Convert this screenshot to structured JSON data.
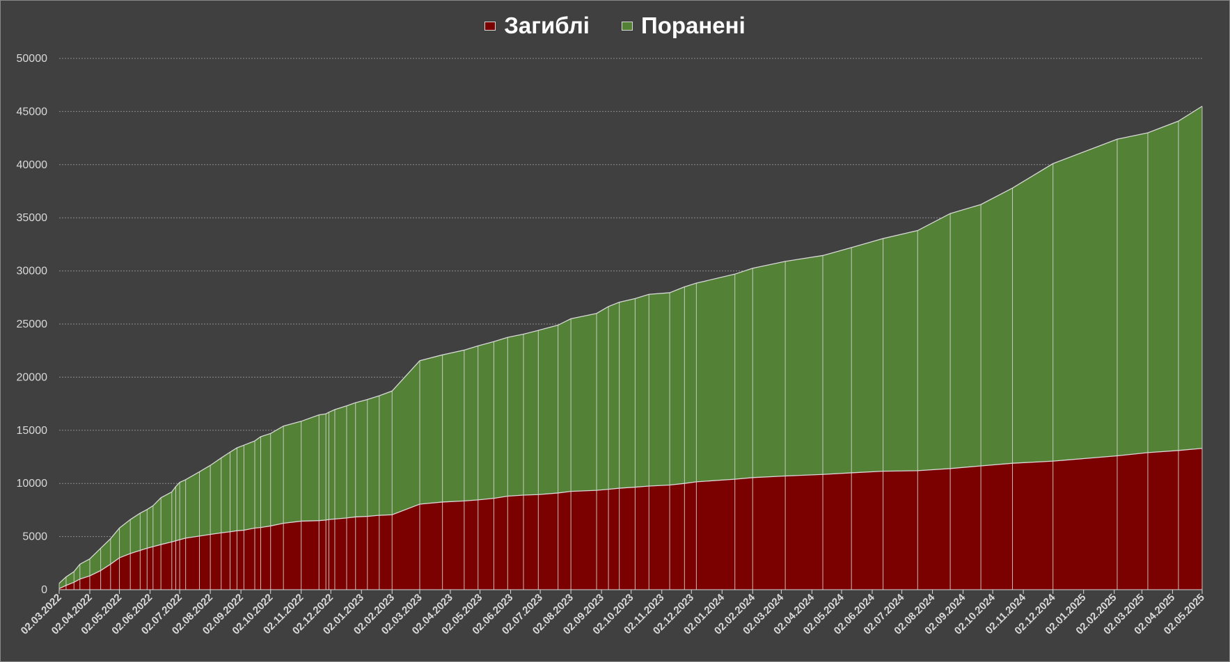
{
  "colors": {
    "background": "#404040",
    "killed": "#7b0000",
    "wounded": "#538135",
    "divider": "#d9d9d9",
    "gridline": "#8c8c8c",
    "tick_text": "#d9d9d9",
    "legend_text": "#ffffff"
  },
  "legend": [
    {
      "label": "Загиблі",
      "color": "#7b0000"
    },
    {
      "label": "Поранені",
      "color": "#538135"
    }
  ],
  "chart_data": {
    "type": "area",
    "stacked": true,
    "grid": "horizontal-dotted",
    "legend_position": "top-center",
    "title": "",
    "xlabel": "",
    "ylabel": "",
    "ylim": [
      0,
      50000
    ],
    "yticks": [
      0,
      5000,
      10000,
      15000,
      20000,
      25000,
      30000,
      35000,
      40000,
      45000,
      50000
    ],
    "xticks": [
      "02.03.2022",
      "02.04.2022",
      "02.05.2022",
      "02.06.2022",
      "02.07.2022",
      "02.08.2022",
      "02.09.2022",
      "02.10.2022",
      "02.11.2022",
      "02.12.2022",
      "02.01.2023",
      "02.02.2023",
      "02.03.2023",
      "02.04.2023",
      "02.05.2023",
      "02.06.2023",
      "02.07.2023",
      "02.08.2023",
      "02.09.2023",
      "02.10.2023",
      "02.11.2023",
      "02.12.2023",
      "02.01.2024",
      "02.02.2024",
      "02.03.2024",
      "02.04.2024",
      "02.05.2024",
      "02.06.2024",
      "02.07.2024",
      "02.08.2024",
      "02.09.2024",
      "02.10.2024",
      "02.11.2024",
      "02.12.2024",
      "02.01.2025",
      "02.02.2025",
      "02.03.2025",
      "02.04.2025",
      "02.05.2025"
    ],
    "x": [
      "02.03.2022",
      "09.03.2022",
      "17.03.2022",
      "23.03.2022",
      "02.04.2022",
      "13.04.2022",
      "23.04.2022",
      "02.05.2022",
      "13.05.2022",
      "23.05.2022",
      "30.05.2022",
      "05.06.2022",
      "13.06.2022",
      "24.06.2022",
      "28.06.2022",
      "02.07.2022",
      "08.07.2022",
      "22.07.2022",
      "02.08.2022",
      "13.08.2022",
      "22.08.2022",
      "29.08.2022",
      "05.09.2022",
      "16.09.2022",
      "22.09.2022",
      "02.10.2022",
      "15.10.2022",
      "02.11.2022",
      "20.11.2022",
      "27.11.2022",
      "30.11.2022",
      "06.12.2022",
      "18.12.2022",
      "27.12.2022",
      "08.01.2023",
      "20.01.2023",
      "02.02.2023",
      "02.03.2023",
      "25.03.2023",
      "16.04.2023",
      "30.04.2023",
      "16.05.2023",
      "30.05.2023",
      "15.06.2023",
      "30.06.2023",
      "20.07.2023",
      "02.08.2023",
      "28.08.2023",
      "09.09.2023",
      "20.09.2023",
      "06.10.2023",
      "20.10.2023",
      "10.11.2023",
      "25.11.2023",
      "07.12.2023",
      "15.01.2024",
      "02.02.2024",
      "06.03.2024",
      "13.04.2024",
      "12.05.2024",
      "13.06.2024",
      "18.07.2024",
      "20.08.2024",
      "20.09.2024",
      "22.10.2024",
      "02.12.2024",
      "05.02.2025",
      "08.03.2025",
      "08.04.2025",
      "02.05.2025"
    ],
    "series": [
      {
        "name": "Загиблі",
        "color": "#7b0000",
        "values": [
          100,
          400,
          700,
          1000,
          1300,
          1800,
          2400,
          3000,
          3400,
          3700,
          3900,
          4050,
          4250,
          4500,
          4600,
          4700,
          4850,
          5050,
          5200,
          5350,
          5450,
          5550,
          5600,
          5800,
          5850,
          6000,
          6250,
          6450,
          6500,
          6550,
          6600,
          6650,
          6750,
          6850,
          6900,
          7000,
          7050,
          8050,
          8250,
          8350,
          8450,
          8600,
          8800,
          8900,
          8950,
          9100,
          9250,
          9350,
          9450,
          9550,
          9650,
          9750,
          9850,
          10000,
          10150,
          10400,
          10550,
          10700,
          10850,
          11000,
          11150,
          11200,
          11400,
          11650,
          11900,
          12100,
          12600,
          12900,
          13100,
          13300
        ]
      },
      {
        "name": "Поранені",
        "color": "#538135",
        "values": [
          500,
          800,
          1000,
          1400,
          1600,
          2100,
          2400,
          2800,
          3200,
          3500,
          3650,
          3850,
          4400,
          4700,
          5100,
          5400,
          5500,
          6050,
          6500,
          7050,
          7500,
          7800,
          8000,
          8200,
          8550,
          8700,
          9150,
          9400,
          9950,
          10000,
          10100,
          10300,
          10550,
          10750,
          11000,
          11250,
          11650,
          13500,
          13850,
          14200,
          14500,
          14750,
          14950,
          15150,
          15450,
          15800,
          16250,
          16650,
          17200,
          17500,
          17750,
          18050,
          18100,
          18500,
          18700,
          19300,
          19700,
          20200,
          20600,
          21200,
          21900,
          22600,
          24000,
          24600,
          25900,
          28000,
          29800,
          30100,
          31000,
          32200
        ]
      }
    ]
  }
}
